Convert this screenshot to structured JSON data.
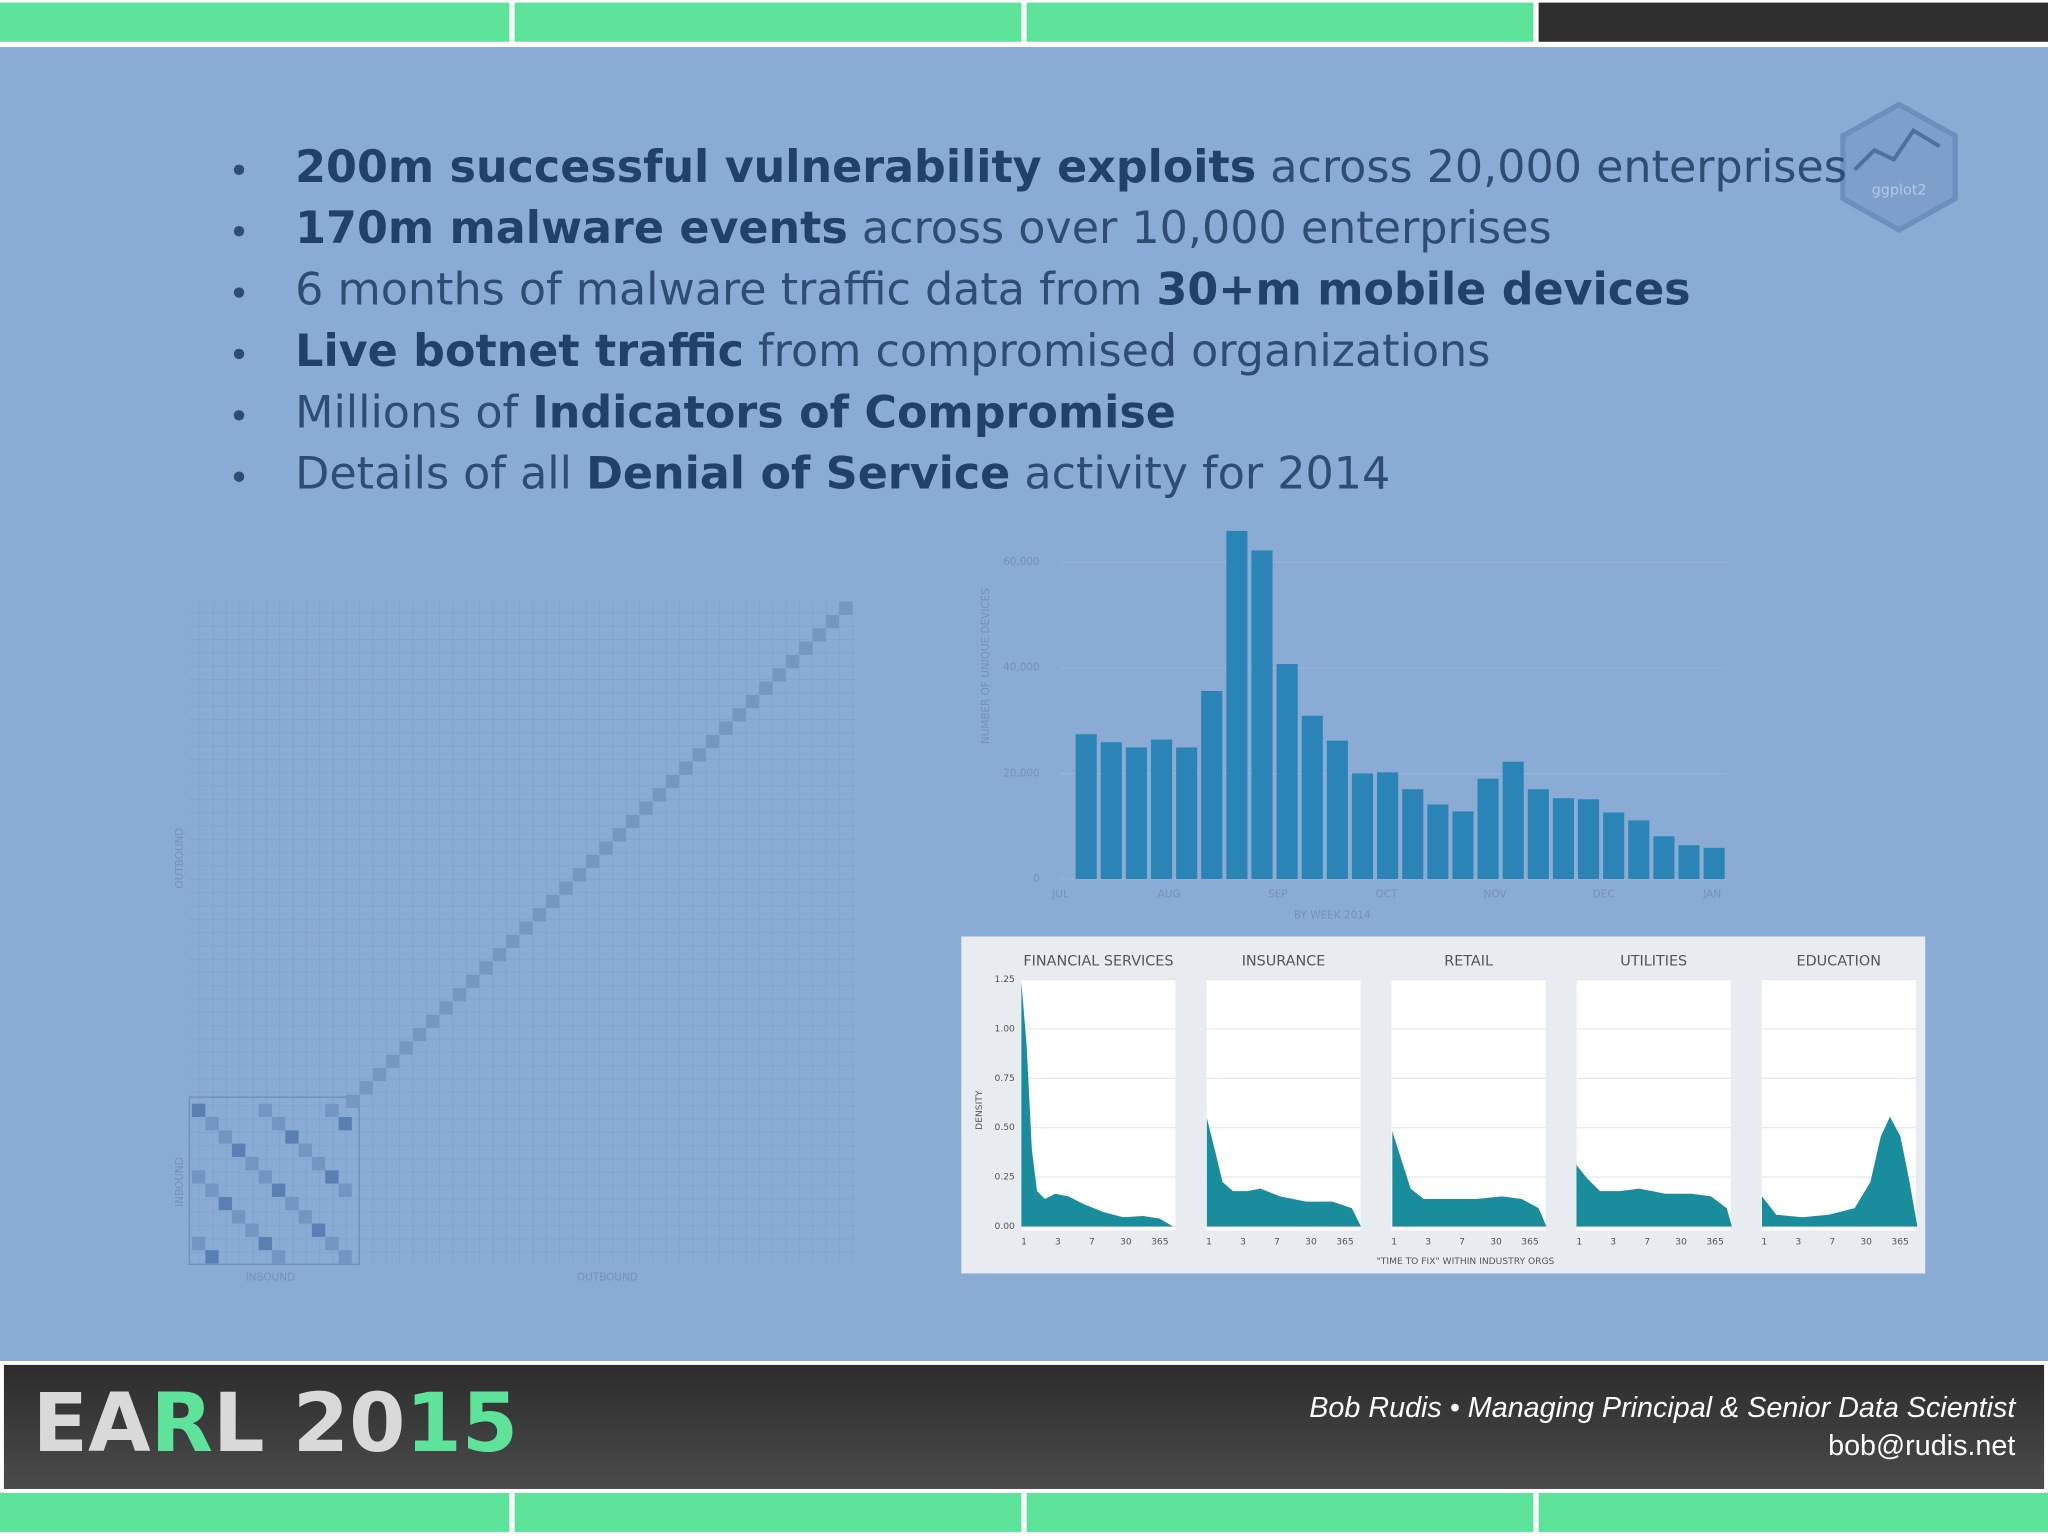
{
  "slide_logo": "ggplot2",
  "bullets": [
    [
      {
        "text": "200m successful vulnerability exploits",
        "bold": true
      },
      {
        "text": " across 20,000 enterprises"
      }
    ],
    [
      {
        "text": "170m malware events",
        "bold": true
      },
      {
        "text": " across over 10,000 enterprises"
      }
    ],
    [
      {
        "text": "6 months of malware traffic data from "
      },
      {
        "text": "30+m mobile devices",
        "bold": true
      }
    ],
    [
      {
        "text": "Live botnet traffic",
        "bold": true
      },
      {
        "text": " from compromised organizations"
      }
    ],
    [
      {
        "text": "Millions of "
      },
      {
        "text": "Indicators of Compromise",
        "bold": true
      }
    ],
    [
      {
        "text": "Details of all "
      },
      {
        "text": "Denial of Service",
        "bold": true
      },
      {
        "text": " activity for 2014"
      }
    ]
  ],
  "chart_data": {
    "type": "bar",
    "y_label": "NUMBER OF UNIQUE DEVICES",
    "x_label": "BY WEEK 2014",
    "categories": [
      null,
      null,
      null,
      null,
      null,
      null,
      null,
      null,
      null,
      null,
      null,
      null,
      null,
      null,
      null,
      null,
      null,
      null,
      null,
      null,
      null,
      null,
      null,
      null,
      null,
      null
    ],
    "month_labels": [
      "JUL",
      "AUG",
      "SEP",
      "OCT",
      "NOV",
      "DEC",
      "JAN"
    ],
    "values": [
      27400,
      25900,
      24900,
      26400,
      24900,
      35600,
      65900,
      62200,
      40700,
      30900,
      26200,
      20000,
      20200,
      17000,
      14100,
      12800,
      19000,
      22200,
      17000,
      15300,
      15100,
      12600,
      11100,
      8100,
      6400,
      5900
    ],
    "color": "#2b84b6",
    "ylim": [
      0,
      67500
    ],
    "yticks": [
      0,
      {
        "value": 20000,
        "label": "20,000"
      },
      {
        "value": 40000,
        "label": "40,000"
      },
      {
        "value": 60000,
        "label": "60,000"
      }
    ],
    "grid": true
  },
  "density_panel": {
    "facets": [
      "FINANCIAL SERVICES",
      "INSURANCE",
      "RETAIL",
      "UTILITIES",
      "EDUCATION"
    ],
    "y_label": "DENSITY",
    "yticks": [
      "1.25",
      "1.00",
      "0.75",
      "0.50",
      "0.25",
      "0.00"
    ],
    "xticks": [
      "1",
      "3",
      "7",
      "30",
      "365"
    ],
    "x_label": "\"TIME TO FIX\" WITHIN INDUSTRY ORGS"
  },
  "heatmap": {
    "y_labels": [
      "OUTBOUND",
      "INBOUND"
    ],
    "x_labels": [
      "INBOUND",
      "OUTBOUND"
    ]
  },
  "footer": {
    "brand": [
      {
        "text": "EA"
      },
      {
        "text": "R",
        "accent": true
      },
      {
        "text": "L 20"
      },
      {
        "text": "15",
        "accent": true
      }
    ],
    "author": "Bob Rudis • Managing Principal & Senior Data Scientist",
    "email": "bob@rudis.net"
  }
}
